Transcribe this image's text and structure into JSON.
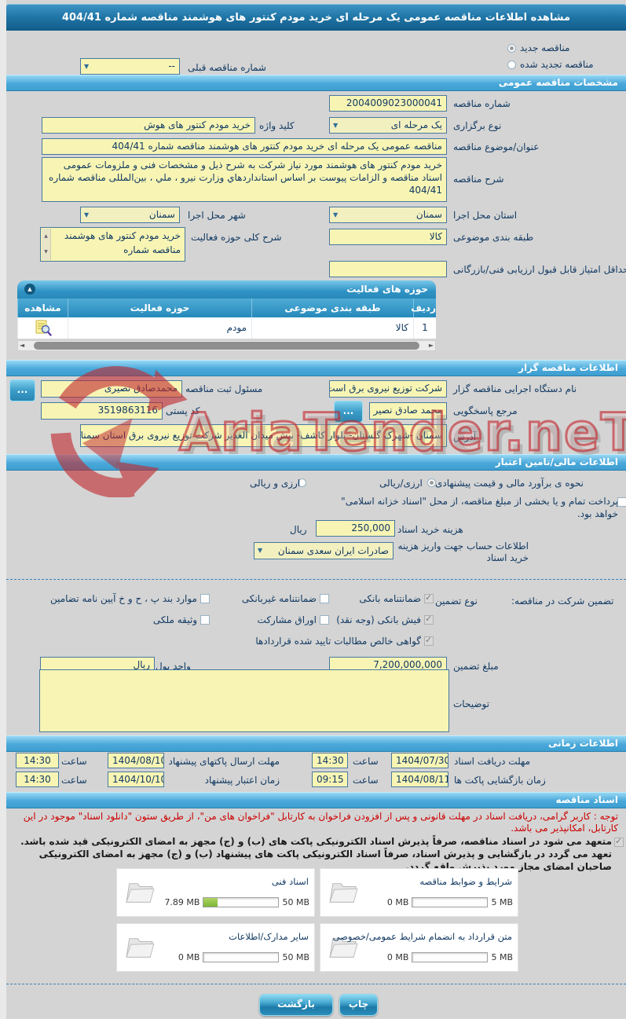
{
  "title_bar": "مشاهده اطلاعات مناقصه عمومی یک مرحله ای خرید مودم کنتور های هوشمند مناقصه شماره 404/41",
  "top": {
    "radio_new": "مناقصه جدید",
    "new_selected": true,
    "radio_renewed": "مناقصه تجدید شده",
    "renewed_selected": false,
    "prev_number_label": "شماره مناقصه قبلی",
    "prev_number_value": "--"
  },
  "sections": {
    "general": "مشخصات مناقصه عمومی",
    "announcer": "اطلاعات مناقصه گزار",
    "financial": "اطلاعات مالی/تامین اعتبار",
    "timing": "اطلاعات زمانی",
    "documents": "اسناد مناقصه"
  },
  "general": {
    "number_label": "شماره مناقصه",
    "number_value": "2004009023000041",
    "type_label": "نوع برگزاری",
    "type_value": "یک مرحله ای",
    "keyword_label": "کلید واژه",
    "keyword_value": "خرید مودم کنتور های هوش",
    "subject_label": "عنوان/موضوع مناقصه",
    "subject_value": "مناقصه عمومی یک مرحله ای خرید مودم کنتور های هوشمند مناقصه شماره 404/41",
    "desc_label": "شرح مناقصه",
    "desc_value": "خرید مودم کنتور های هوشمند مورد نیاز شرکت به شرح ذیل و مشخصات فنی و ملزومات عمومی اسناد مناقصه و الزامات پیوست بر اساس استانداردهاي وزارت نیرو ، ملي ، بین‌المللی مناقصه شماره 404/41",
    "province_label": "استان محل اجرا",
    "province_value": "سمنان",
    "city_label": "شهر محل اجرا",
    "city_value": "سمنان",
    "category_label": "طبقه بندی موضوعی",
    "category_value": "کالا",
    "activity_label": "شرح کلی حوزه فعالیت",
    "activity_value": "خرید مودم کنتور های هوشمند مناقصه شماره",
    "min_score_label": "حداقل امتیاز قابل قبول ارزیابی فنی/بازرگانی",
    "min_score_value": ""
  },
  "activity_table": {
    "title": "حوزه های فعالیت",
    "headers": {
      "row": "ردیف",
      "category": "طبقه بندی موضوعی",
      "field": "حوزه فعالیت",
      "view": "مشاهده"
    },
    "rows": [
      {
        "row": "1",
        "category": "کالا",
        "field": "مودم"
      }
    ]
  },
  "announcer": {
    "agency_label": "نام دستگاه اجرایی مناقصه گزار",
    "agency_value": "شرکت توزیع نیروی برق است",
    "registrar_label": "مسئول ثبت مناقصه",
    "registrar_value": "محمدصادق نصیری",
    "contact_label": "مرجع پاسخگویی",
    "contact_value": "محمد صادق نصیر",
    "postal_label": "کد پستی",
    "postal_value": "3519863116",
    "address_label": "آدرس",
    "address_value": "سمنان -شهرک گلستان- بلوار کاشف- نبش میدان الغدیر شرکت توزیع نیروی برق استان سمنان",
    "more_button": "..."
  },
  "financial": {
    "estimate_label": "نحوه ی برآورد مالی و قیمت پیشنهادی",
    "rial_option": "ارزی/ریالی",
    "rial_selected": true,
    "both_option": "ارزی و ریالی",
    "both_selected": false,
    "treasury_note": "پرداخت تمام و یا بخشی از مبلغ مناقصه، از محل \"اسناد خزانه اسلامی\" خواهد بود.",
    "treasury_checked": false,
    "doc_fee_label": "هزینه خرید اسناد",
    "doc_fee_value": "250,000",
    "doc_fee_unit": "ریال",
    "account_label_1": "اطلاعات حساب جهت واریز هزینه",
    "account_label_2": "خرید اسناد",
    "account_value": "صادرات ایران سعدی سمنان"
  },
  "guarantee": {
    "label": "تضمین شرکت در مناقصه:",
    "type_label": "نوع تضمین",
    "options": [
      {
        "label": "ضمانتنامه بانکی",
        "checked": true
      },
      {
        "label": "ضمانتنامه غیربانکی",
        "checked": false
      },
      {
        "label": "موارد بند پ ، ح و خ آیین نامه تضامین",
        "checked": false
      },
      {
        "label": "فیش بانکی (وجه نقد)",
        "checked": true
      },
      {
        "label": "اوراق مشارکت",
        "checked": false
      },
      {
        "label": "وثیقه ملکی",
        "checked": false
      },
      {
        "label": "گواهی خالص مطالبات تایید شده قراردادها",
        "checked": true
      }
    ],
    "amount_label": "مبلغ تضمین",
    "amount_value": "7,200,000,000",
    "currency_label": "واحد پول",
    "currency_value": "ریال",
    "notes_label": "توضیحات",
    "notes_value": ""
  },
  "timing": {
    "hour_label": "ساعت",
    "r1a_label": "مهلت دریافت اسناد",
    "r1a_date": "1404/07/30",
    "r1a_time": "14:30",
    "r1b_label": "مهلت ارسال پاکتهای پیشنهاد",
    "r1b_date": "1404/08/10",
    "r1b_time": "14:30",
    "r2a_label": "زمان بازگشایی پاکت ها",
    "r2a_date": "1404/08/11",
    "r2a_time": "09:15",
    "r2b_label": "زمان اعتبار پیشنهاد",
    "r2b_date": "1404/10/10",
    "r2b_time": "14:30"
  },
  "documents": {
    "notice": "توجه : کاربر گرامی، دریافت اسناد در مهلت قانونی و پس از افزودن فراخوان به کارتابل \"فراخوان های من\"، از طریق ستون \"دانلود اسناد\" موجود در این کارتابل، امکانپذیر می باشد.",
    "commitment": "متعهد می شود در اسناد مناقصه، صرفاً پذیرش اسناد الکترونیکی پاکت های (ب) و (ج) مجهز به امضای الکترونیکی قید شده باشد. تعهد می گردد در بازگشایی و پذیرش اسناد، صرفاً اسناد الکترونیکی پاکت های پیشنهاد (ب) و (ج) مجهز به امضای الکترونیکی صاحبان امضای مجاز مورد پذیرش واقع گردد.",
    "commitment_checked": true,
    "uploads": [
      {
        "label": "شرایط و ضوابط مناقصه",
        "used": "0 MB",
        "max": "5 MB",
        "fill": 0
      },
      {
        "label": "اسناد فنی",
        "used": "7.89 MB",
        "max": "50 MB",
        "fill": 18
      },
      {
        "label": "متن قرارداد به انضمام شرایط عمومی/خصوصی",
        "used": "0 MB",
        "max": "5 MB",
        "fill": 0
      },
      {
        "label": "سایر مدارک/اطلاعات",
        "used": "0 MB",
        "max": "50 MB",
        "fill": 0
      }
    ]
  },
  "footer": {
    "print": "چاپ",
    "back": "بازگشت"
  },
  "watermark": {
    "text": "AriaTender.neT"
  },
  "icons": {
    "check": "✓",
    "dropdown_arrow": "▼",
    "collapse_arrow": "▲",
    "scroll_left": "◄",
    "scroll_right": "►",
    "spin_up": "▲",
    "spin_down": "▼"
  },
  "colors": {
    "header_blue": "#1d6f9e",
    "section_blue": "#4aa8da",
    "field_yellow": "#f8f5b4",
    "notice_red": "#cc0000",
    "progress_green": "#7db439",
    "button_blue": "#2b8db9",
    "watermark_red": "#c1272d"
  }
}
